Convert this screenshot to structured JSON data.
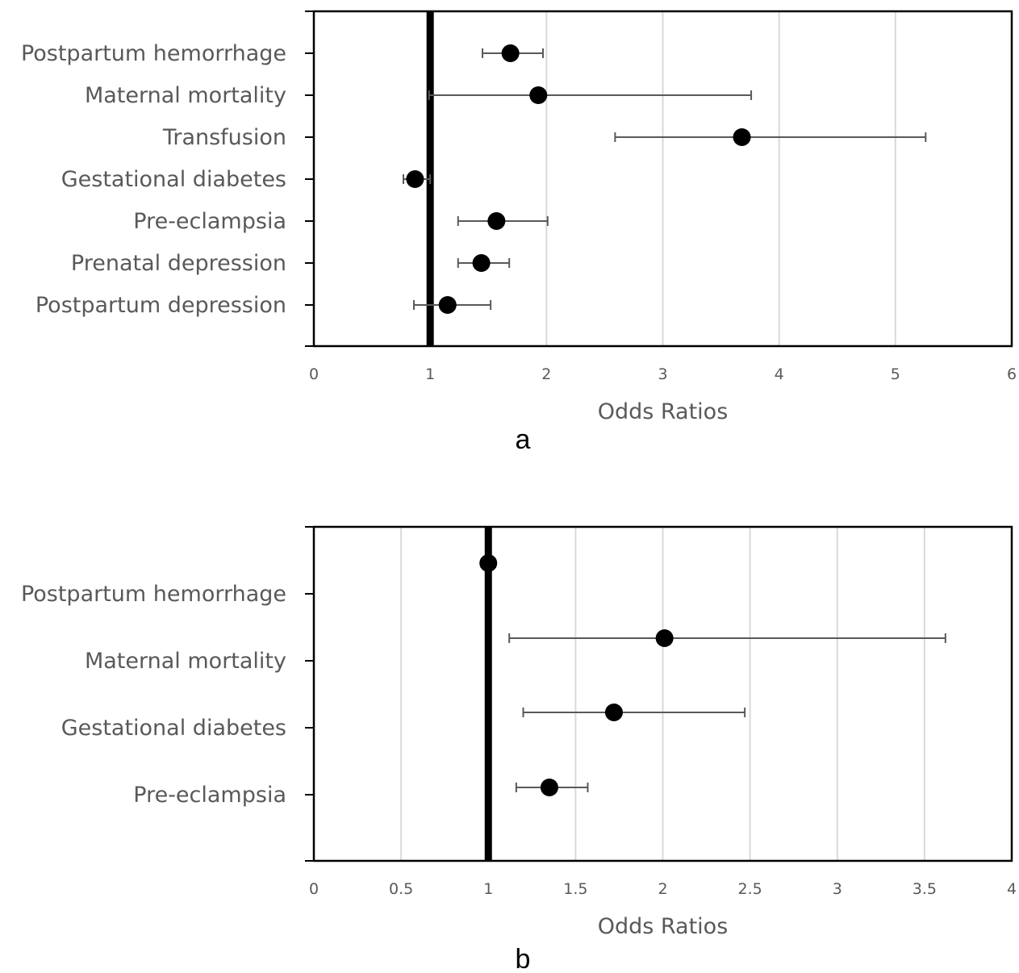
{
  "chart_data": [
    {
      "type": "scatter",
      "panel_label": "a",
      "xlabel": "Odds Ratios",
      "xlim": [
        0,
        6
      ],
      "xticks": [
        "0",
        "1",
        "2",
        "3",
        "4",
        "5",
        "6"
      ],
      "reference_line": 1,
      "grid": "vertical",
      "categories": [
        "Postpartum hemorrhage",
        "Maternal mortality",
        "Transfusion",
        "Gestational diabetes",
        "Pre-eclampsia",
        "Prenatal depression",
        "Postpartum depression"
      ],
      "values": [
        1.69,
        1.93,
        3.68,
        0.87,
        1.57,
        1.44,
        1.15
      ],
      "ci_low": [
        1.45,
        0.99,
        2.59,
        0.77,
        1.24,
        1.24,
        0.86
      ],
      "ci_high": [
        1.97,
        3.76,
        5.26,
        1.0,
        2.01,
        1.68,
        1.52
      ]
    },
    {
      "type": "scatter",
      "panel_label": "b",
      "xlabel": "Odds Ratios",
      "xlim": [
        0,
        4
      ],
      "xticks": [
        "0",
        "0.5",
        "1",
        "1.5",
        "2",
        "2.5",
        "3",
        "3.5",
        "4"
      ],
      "reference_line": 1,
      "grid": "vertical",
      "categories": [
        "Postpartum hemorrhage",
        "Maternal mortality",
        "Gestational diabetes",
        "Pre-eclampsia"
      ],
      "values": [
        1.0,
        2.01,
        1.72,
        1.35
      ],
      "ci_low": [
        0.96,
        1.12,
        1.2,
        1.16
      ],
      "ci_high": [
        1.04,
        3.62,
        2.47,
        1.57
      ]
    }
  ]
}
